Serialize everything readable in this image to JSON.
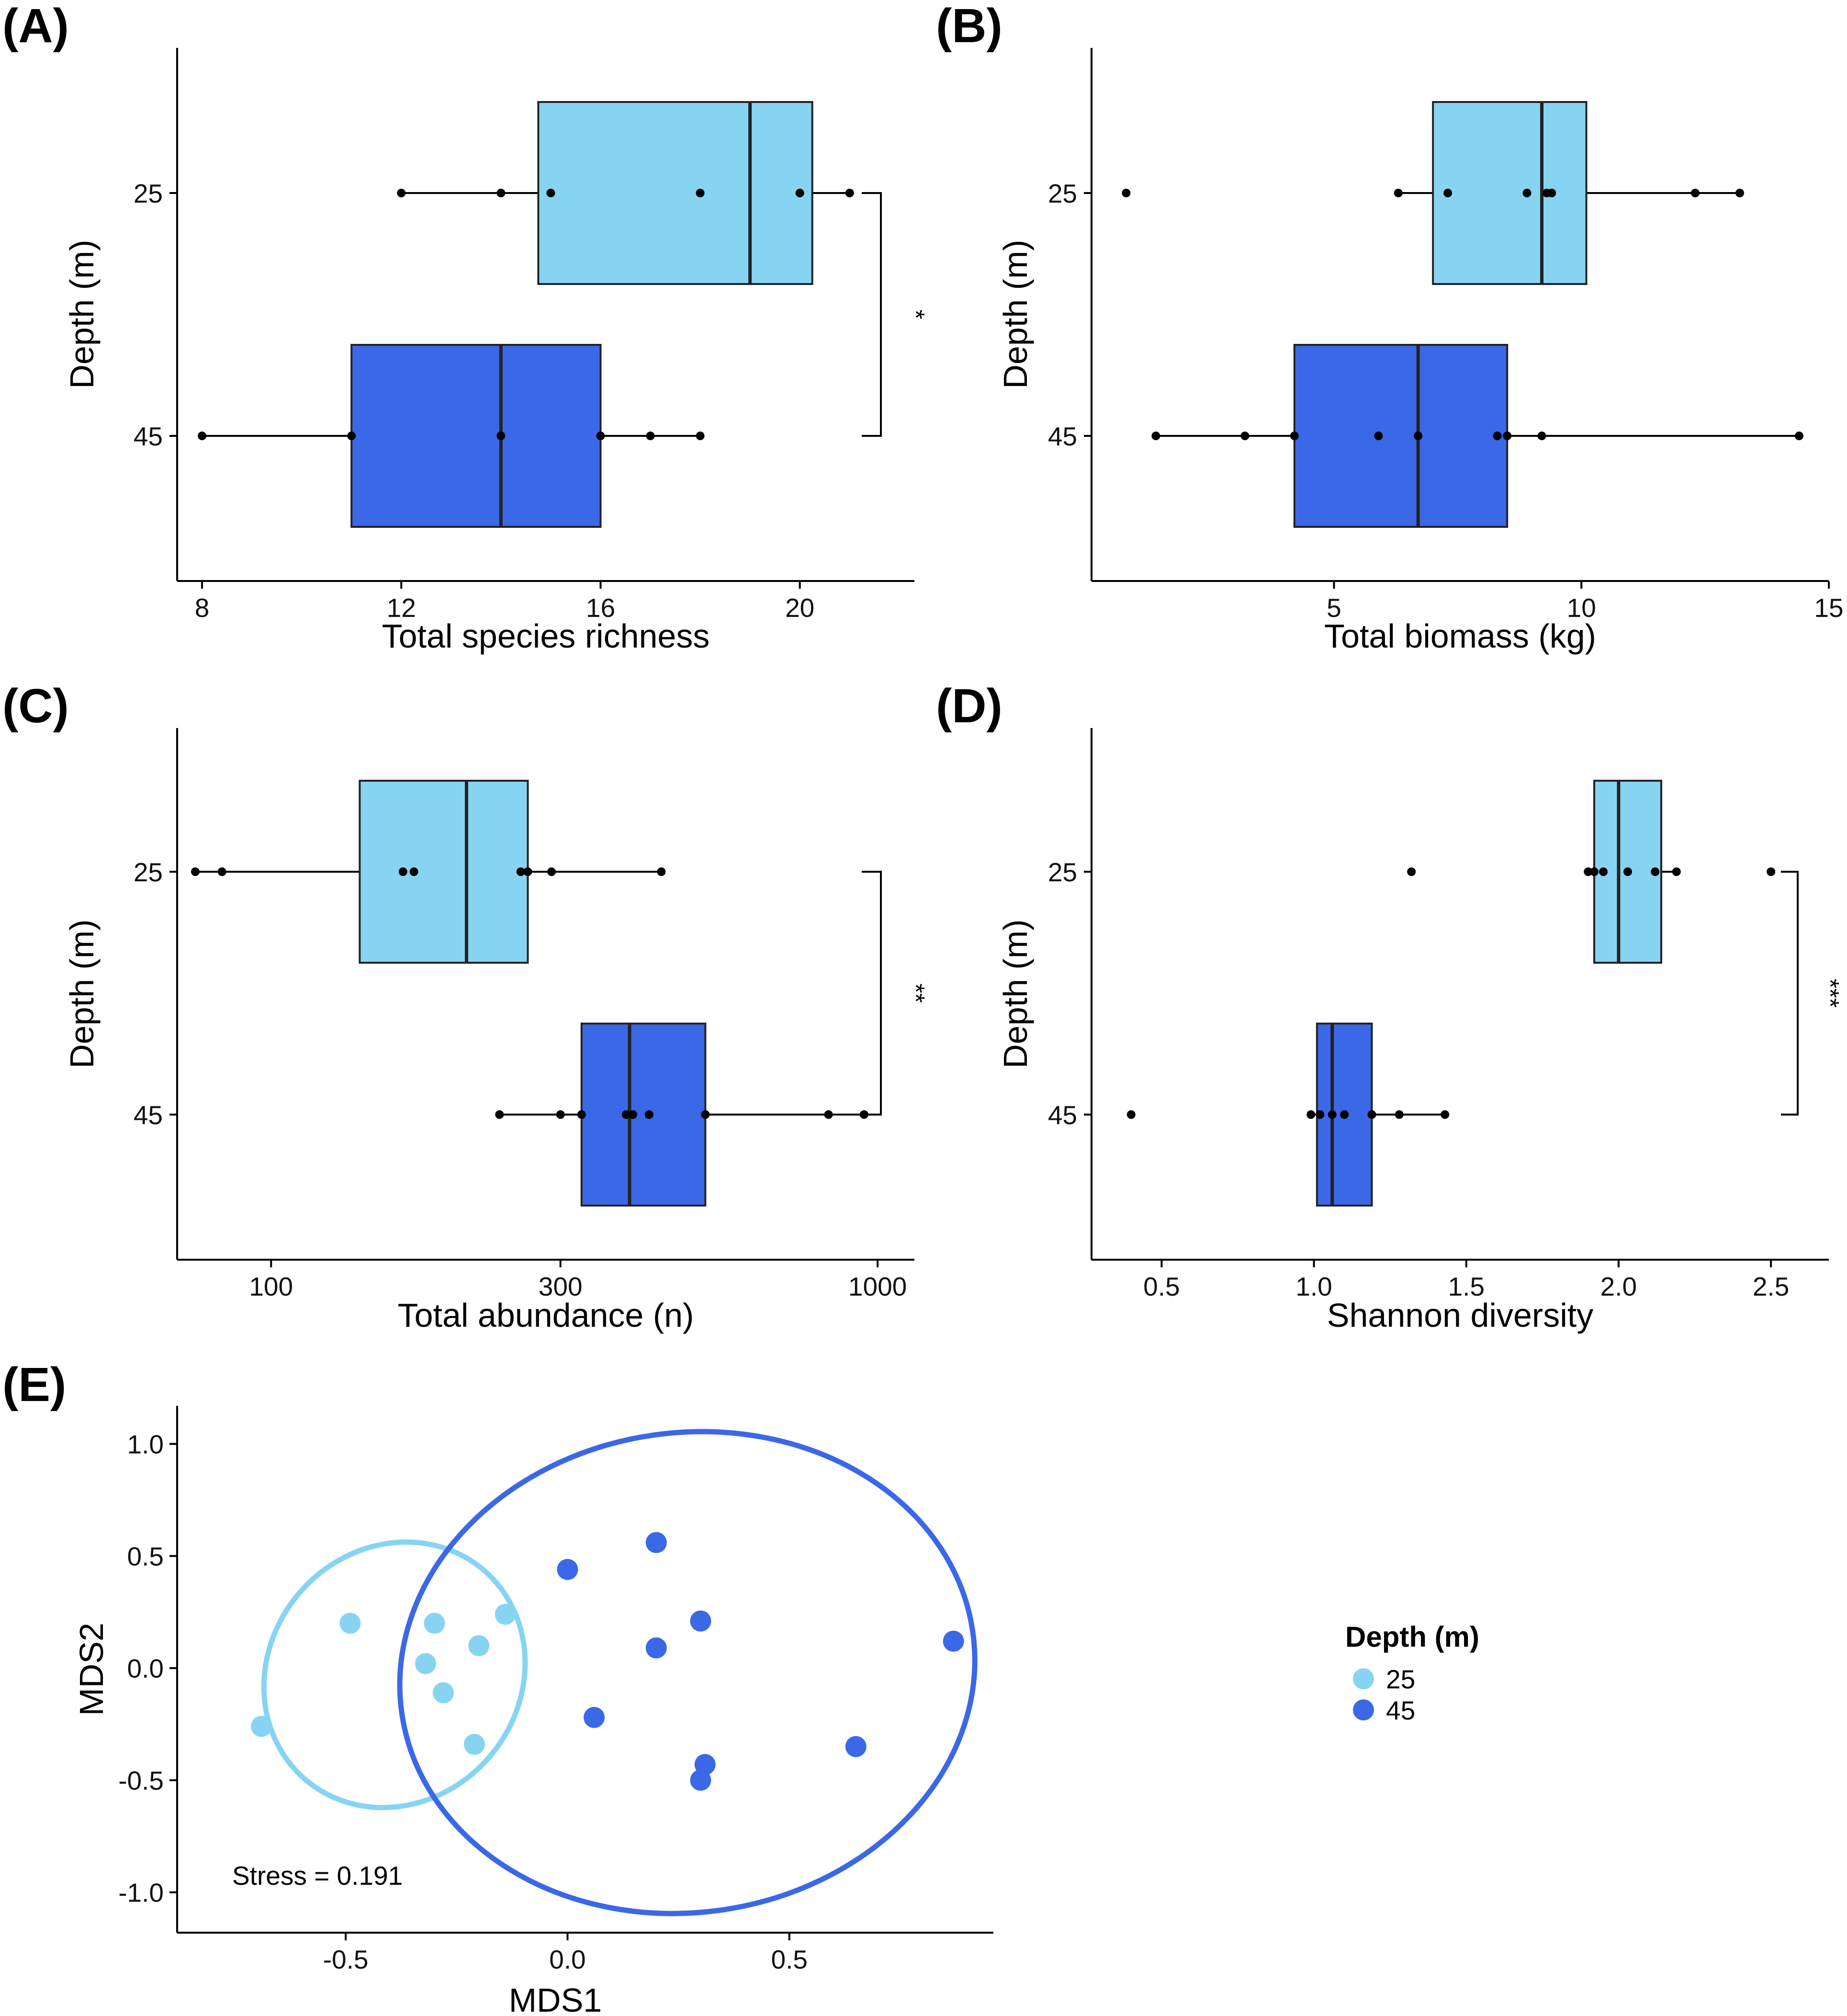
{
  "colors": {
    "depth25": "#87d4f2",
    "depth45": "#3b68e6",
    "axis": "#000000",
    "point": "#000000"
  },
  "chart_data": [
    {
      "panel": "(A)",
      "type": "boxplot",
      "orientation": "horizontal",
      "xlabel": "Total species richness",
      "ylabel": "Depth (m)",
      "xlim": [
        7.5,
        22.3
      ],
      "xticks": [
        8,
        12,
        16,
        20
      ],
      "xtick_labels": [
        "8",
        "12",
        "16",
        "20"
      ],
      "xscale": "linear",
      "categories": [
        "25",
        "45"
      ],
      "boxes": [
        {
          "group": "25",
          "q1": 14.75,
          "median": 19,
          "q3": 20.25,
          "whisker_low": 12,
          "whisker_high": 21,
          "points": [
            12,
            14,
            15,
            18,
            20,
            21
          ]
        },
        {
          "group": "45",
          "q1": 11,
          "median": 14,
          "q3": 16,
          "whisker_low": 8,
          "whisker_high": 18,
          "points": [
            8,
            11,
            14,
            16,
            17,
            18
          ]
        }
      ],
      "significance": "*"
    },
    {
      "panel": "(B)",
      "type": "boxplot",
      "orientation": "horizontal",
      "xlabel": "Total biomass (kg)",
      "ylabel": "Depth (m)",
      "xlim": [
        0.1,
        15.0
      ],
      "xticks": [
        5,
        10,
        15
      ],
      "xtick_labels": [
        "5",
        "10",
        "15"
      ],
      "xscale": "linear",
      "categories": [
        "25",
        "45"
      ],
      "boxes": [
        {
          "group": "25",
          "q1": 7.0,
          "median": 9.2,
          "q3": 10.1,
          "whisker_low": 6.3,
          "whisker_high": 13.2,
          "points": [
            0.8,
            6.3,
            7.3,
            8.9,
            9.3,
            9.4,
            12.3,
            13.2
          ]
        },
        {
          "group": "45",
          "q1": 4.2,
          "median": 6.7,
          "q3": 8.5,
          "whisker_low": 1.4,
          "whisker_high": 14.4,
          "points": [
            1.4,
            3.2,
            4.2,
            5.9,
            6.7,
            8.3,
            8.5,
            9.2,
            14.4
          ]
        }
      ],
      "significance": ""
    },
    {
      "panel": "(C)",
      "type": "boxplot",
      "orientation": "horizontal",
      "xlabel": "Total abundance (n)",
      "ylabel": "Depth (m)",
      "xlim": [
        70,
        1150
      ],
      "xticks": [
        100,
        300,
        1000
      ],
      "xtick_labels": [
        "100",
        "300",
        "1000"
      ],
      "xscale": "log",
      "categories": [
        "25",
        "45"
      ],
      "boxes": [
        {
          "group": "25",
          "q1": 140,
          "median": 210,
          "q3": 265,
          "whisker_low": 75,
          "whisker_high": 440,
          "points": [
            75,
            83,
            165,
            172,
            258,
            265,
            290,
            440
          ]
        },
        {
          "group": "45",
          "q1": 325,
          "median": 390,
          "q3": 520,
          "whisker_low": 238,
          "whisker_high": 950,
          "points": [
            238,
            300,
            325,
            385,
            395,
            420,
            520,
            830,
            950
          ]
        }
      ],
      "significance": "**"
    },
    {
      "panel": "(D)",
      "type": "boxplot",
      "orientation": "horizontal",
      "xlabel": "Shannon diversity",
      "ylabel": "Depth (m)",
      "xlim": [
        0.27,
        2.69
      ],
      "xticks": [
        0.5,
        1.0,
        1.5,
        2.0,
        2.5
      ],
      "xtick_labels": [
        "0.5",
        "1.0",
        "1.5",
        "2.0",
        "2.5"
      ],
      "xscale": "linear",
      "categories": [
        "25",
        "45"
      ],
      "boxes": [
        {
          "group": "25",
          "q1": 1.92,
          "median": 2.0,
          "q3": 2.14,
          "whisker_low": 1.9,
          "whisker_high": 2.19,
          "points": [
            1.32,
            1.9,
            1.92,
            1.95,
            2.03,
            2.12,
            2.19,
            2.5
          ]
        },
        {
          "group": "45",
          "q1": 1.01,
          "median": 1.06,
          "q3": 1.19,
          "whisker_low": 0.99,
          "whisker_high": 1.43,
          "points": [
            0.4,
            0.99,
            1.02,
            1.06,
            1.1,
            1.19,
            1.28,
            1.43
          ]
        }
      ],
      "significance": "***"
    },
    {
      "panel": "(E)",
      "type": "scatter",
      "xlabel": "MDS1",
      "ylabel": "MDS2",
      "xlim": [
        -0.88,
        0.96
      ],
      "ylim": [
        -1.18,
        1.17
      ],
      "xticks": [
        -0.5,
        0.0,
        0.5
      ],
      "xtick_labels": [
        "-0.5",
        "0.0",
        "0.5"
      ],
      "yticks": [
        -1.0,
        -0.5,
        0.0,
        0.5,
        1.0
      ],
      "ytick_labels": [
        "-1.0",
        "-0.5",
        "0.0",
        "0.5",
        "1.0"
      ],
      "series": [
        {
          "name": "25",
          "points": [
            [
              -0.49,
              0.2
            ],
            [
              -0.3,
              0.2
            ],
            [
              -0.14,
              0.24
            ],
            [
              -0.2,
              0.1
            ],
            [
              -0.32,
              0.02
            ],
            [
              -0.28,
              -0.11
            ],
            [
              -0.21,
              -0.34
            ],
            [
              -0.69,
              -0.26
            ]
          ],
          "ellipse": {
            "cx": -0.39,
            "cy": -0.03,
            "rx": 0.31,
            "ry": 0.56,
            "angle_deg": -50
          }
        },
        {
          "name": "45",
          "points": [
            [
              0.0,
              0.44
            ],
            [
              0.2,
              0.56
            ],
            [
              0.3,
              0.21
            ],
            [
              0.2,
              0.09
            ],
            [
              0.87,
              0.12
            ],
            [
              0.06,
              -0.22
            ],
            [
              0.31,
              -0.43
            ],
            [
              0.3,
              -0.5
            ],
            [
              0.65,
              -0.35
            ]
          ],
          "ellipse": {
            "cx": 0.27,
            "cy": -0.02,
            "rx": 0.65,
            "ry": 1.07,
            "angle_deg": -8
          }
        }
      ],
      "annotation": "Stress = 0.191",
      "legend": {
        "title": "Depth (m)",
        "items": [
          "25",
          "45"
        ],
        "position": "right"
      }
    }
  ]
}
